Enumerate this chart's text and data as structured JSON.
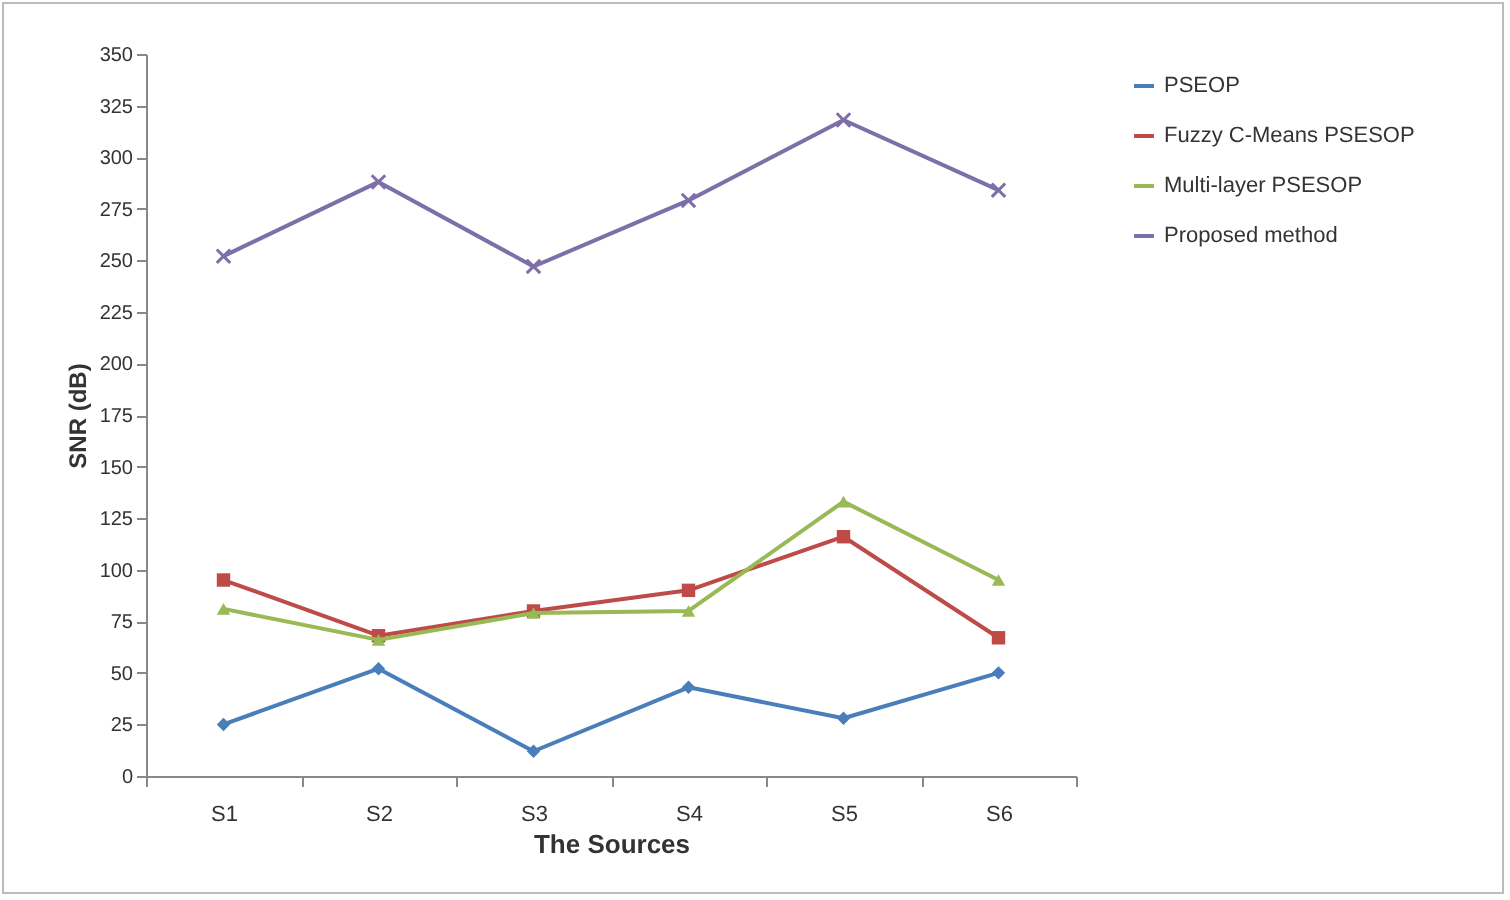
{
  "chart_data": {
    "type": "line",
    "xlabel": "The Sources",
    "ylabel": "SNR (dB)",
    "categories": [
      "S1",
      "S2",
      "S3",
      "S4",
      "S5",
      "S6"
    ],
    "series": [
      {
        "name": "PSEOP",
        "color": "#4a7ebb",
        "marker": "diamond",
        "values": [
          25,
          52,
          12,
          43,
          28,
          50
        ]
      },
      {
        "name": "Fuzzy C-Means PSESOP",
        "color": "#be4b48",
        "marker": "square",
        "values": [
          95,
          68,
          80,
          90,
          116,
          67
        ]
      },
      {
        "name": "Multi-layer PSESOP",
        "color": "#98b954",
        "marker": "triangle",
        "values": [
          81,
          66,
          79,
          80,
          133,
          95
        ]
      },
      {
        "name": "Proposed method",
        "color": "#7d6fa8",
        "marker": "cross",
        "values": [
          252,
          288,
          247,
          279,
          318,
          284
        ]
      }
    ],
    "ylim": [
      0,
      350
    ],
    "yticks": [
      0,
      25,
      50,
      75,
      100,
      125,
      150,
      175,
      200,
      225,
      250,
      275,
      300,
      325,
      350
    ],
    "grid": false,
    "legend": "right"
  }
}
